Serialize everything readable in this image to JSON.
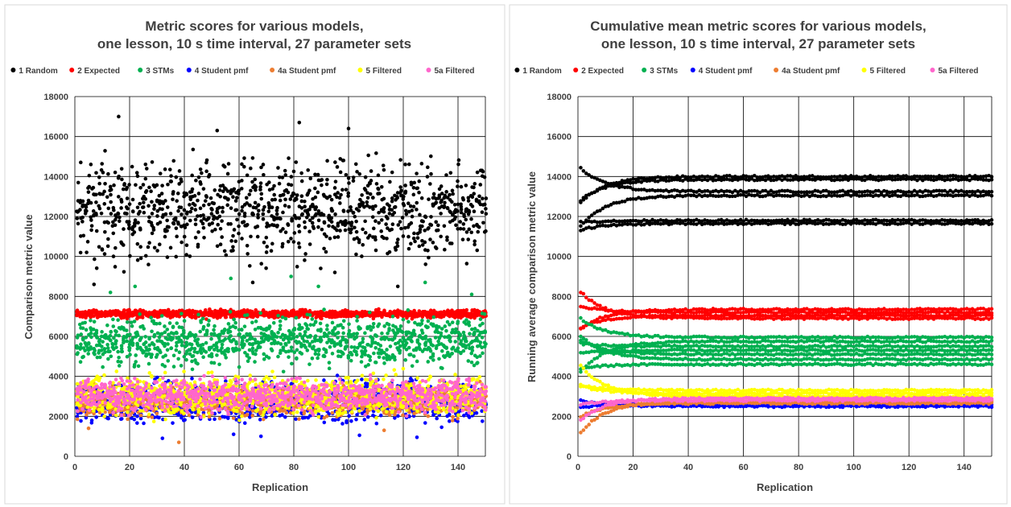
{
  "chart_data": [
    {
      "type": "scatter",
      "title_line1": "Metric scores for various models,",
      "title_line2": "one lesson, 10 s time interval, 27 parameter sets",
      "xlabel": "Replication",
      "ylabel": "Comparison metric value",
      "xlim": [
        0,
        150
      ],
      "ylim": [
        0,
        18000
      ],
      "xticks": [
        0,
        20,
        40,
        60,
        80,
        100,
        120,
        140
      ],
      "yticks": [
        0,
        2000,
        4000,
        6000,
        8000,
        10000,
        12000,
        14000,
        16000,
        18000
      ],
      "grid": true,
      "legend_position": "top",
      "series": [
        {
          "name": "1 Random",
          "color": "#000000",
          "band": [
            9000,
            15800
          ],
          "outliers": [
            [
              16,
              17000
            ],
            [
              82,
              16700
            ],
            [
              100,
              16400
            ],
            [
              52,
              16300
            ],
            [
              7,
              8600
            ],
            [
              118,
              8500
            ],
            [
              65,
              8700
            ],
            [
              95,
              9200
            ]
          ]
        },
        {
          "name": "2 Expected",
          "color": "#ff0000",
          "band": [
            6850,
            7400
          ],
          "outliers": []
        },
        {
          "name": "3 STMs",
          "color": "#00b050",
          "band": [
            4100,
            7500
          ],
          "outliers": [
            [
              22,
              8500
            ],
            [
              89,
              8500
            ],
            [
              128,
              8700
            ],
            [
              57,
              8900
            ],
            [
              79,
              9000
            ],
            [
              13,
              8200
            ],
            [
              145,
              8100
            ]
          ]
        },
        {
          "name": "4 Student pmf",
          "color": "#0000ff",
          "band": [
            1300,
            4200
          ],
          "outliers": [
            [
              32,
              900
            ],
            [
              68,
              1000
            ],
            [
              125,
              950
            ],
            [
              58,
              1100
            ],
            [
              104,
              1050
            ]
          ]
        },
        {
          "name": "4a Student pmf",
          "color": "#ed7d31",
          "band": [
            1700,
            3800
          ],
          "outliers": [
            [
              38,
              700
            ],
            [
              113,
              1300
            ],
            [
              5,
              1400
            ]
          ]
        },
        {
          "name": "5 Filtered",
          "color": "#ffff00",
          "band": [
            1600,
            4500
          ],
          "outliers": []
        },
        {
          "name": "5a Filtered",
          "color": "#ff66cc",
          "band": [
            1900,
            4200
          ],
          "outliers": []
        }
      ]
    },
    {
      "type": "scatter",
      "title_line1": "Cumulative mean metric scores for various models,",
      "title_line2": "one lesson, 10 s time interval, 27 parameter sets",
      "xlabel": "Replication",
      "ylabel": "Running average comparison metric value",
      "xlim": [
        0,
        150
      ],
      "ylim": [
        0,
        18000
      ],
      "xticks": [
        0,
        20,
        40,
        60,
        80,
        100,
        120,
        140
      ],
      "yticks": [
        0,
        2000,
        4000,
        6000,
        8000,
        10000,
        12000,
        14000,
        16000,
        18000
      ],
      "grid": true,
      "legend_position": "top",
      "series": [
        {
          "name": "1 Random",
          "color": "#000000",
          "levels": [
            11650,
            11800,
            13050,
            13250,
            13850,
            14000
          ]
        },
        {
          "name": "2 Expected",
          "color": "#ff0000",
          "levels": [
            6900,
            7050,
            7200,
            7350
          ]
        },
        {
          "name": "3 STMs",
          "color": "#00b050",
          "levels": [
            4600,
            4850,
            5100,
            5300,
            5500,
            5750,
            5950
          ]
        },
        {
          "name": "4 Student pmf",
          "color": "#0000ff",
          "levels": [
            2500,
            2600
          ]
        },
        {
          "name": "4a Student pmf",
          "color": "#ed7d31",
          "levels": [
            2650,
            2750
          ]
        },
        {
          "name": "5 Filtered",
          "color": "#ffff00",
          "levels": [
            3000,
            3150,
            3300
          ]
        },
        {
          "name": "5a Filtered",
          "color": "#ff66cc",
          "levels": [
            2800,
            2900
          ]
        }
      ]
    }
  ]
}
